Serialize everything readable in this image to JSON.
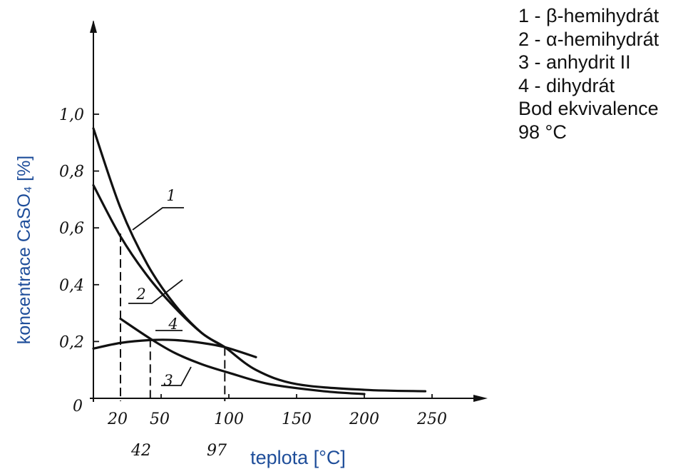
{
  "chart_data": {
    "type": "line",
    "xlabel": "teplota [°C]",
    "ylabel": "koncentrace CaSO₄ [%]",
    "xlim": [
      0,
      250
    ],
    "ylim": [
      0,
      1.0
    ],
    "x_ticks": [
      {
        "value": 0,
        "label": "0"
      },
      {
        "value": 50,
        "label": "50"
      },
      {
        "value": 100,
        "label": "100"
      },
      {
        "value": 150,
        "label": "150"
      },
      {
        "value": 200,
        "label": "200"
      },
      {
        "value": 250,
        "label": "250"
      }
    ],
    "y_ticks": [
      {
        "value": 0.2,
        "label": "0,2"
      },
      {
        "value": 0.4,
        "label": "0,4"
      },
      {
        "value": 0.6,
        "label": "0,6"
      },
      {
        "value": 0.8,
        "label": "0,8"
      },
      {
        "value": 1.0,
        "label": "1,0"
      }
    ],
    "series": [
      {
        "curve_label": "1",
        "x": [
          0,
          20,
          40,
          60,
          80,
          97,
          120,
          150,
          200,
          245
        ],
        "y": [
          0.95,
          0.67,
          0.47,
          0.33,
          0.23,
          0.18,
          0.1,
          0.05,
          0.03,
          0.025
        ]
      },
      {
        "curve_label": "2",
        "x": [
          0,
          20,
          40,
          60,
          80,
          97
        ],
        "y": [
          0.75,
          0.57,
          0.43,
          0.32,
          0.23,
          0.18
        ]
      },
      {
        "curve_label": "3",
        "x": [
          20,
          42,
          60,
          80,
          100,
          130,
          170,
          200
        ],
        "y": [
          0.28,
          0.21,
          0.16,
          0.12,
          0.09,
          0.05,
          0.025,
          0.015
        ]
      },
      {
        "curve_label": "4",
        "x": [
          0,
          20,
          42,
          60,
          80,
          97,
          120
        ],
        "y": [
          0.175,
          0.195,
          0.205,
          0.205,
          0.195,
          0.18,
          0.145
        ]
      }
    ],
    "reference_lines": [
      {
        "x": 20,
        "y": 0.58,
        "label": "20"
      },
      {
        "x": 42,
        "y": 0.21,
        "label": "42"
      },
      {
        "x": 97,
        "y": 0.18,
        "label": "97"
      }
    ],
    "legend": {
      "placement": "top-right",
      "entries": [
        "1 - β-hemihydrát",
        "2 - α-hemihydrát",
        "3 - anhydrit II",
        "4 - dihydrát",
        "Bod ekvivalence",
        "98 °C"
      ]
    }
  }
}
